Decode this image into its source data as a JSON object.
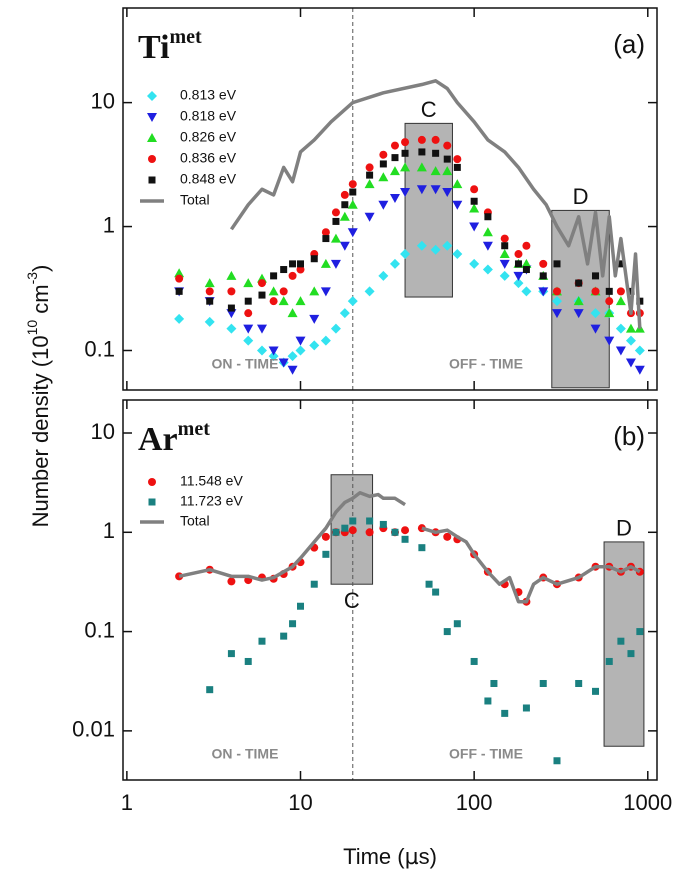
{
  "chart_data": [
    {
      "type": "scatter",
      "title": [
        "Ti",
        "met"
      ],
      "panel_label": "(a)",
      "on_label": "ON - TIME",
      "off_label": "OFF - TIME",
      "log_x": true,
      "log_y": true,
      "xlim": [
        0.95,
        1130
      ],
      "ylim": [
        0.048,
        58
      ],
      "xticks": [
        1,
        10,
        100,
        1000
      ],
      "yticks": [
        0.1,
        1,
        10
      ],
      "vline": 20,
      "legend": "upper left",
      "regions": [
        {
          "label": "C",
          "x": [
            40,
            75
          ],
          "y": [
            0.27,
            6.8
          ]
        },
        {
          "label": "D",
          "x": [
            280,
            600
          ],
          "y": [
            0.05,
            1.35
          ]
        }
      ],
      "series": [
        {
          "name": "0.813 eV",
          "color": "#33e3f0",
          "marker": "diamond",
          "x": [
            2,
            3,
            4,
            5,
            6,
            7,
            8,
            9,
            10,
            12,
            14,
            16,
            18,
            20,
            25,
            30,
            35,
            40,
            50,
            60,
            70,
            80,
            100,
            120,
            150,
            180,
            200,
            250,
            300,
            400,
            500,
            600,
            700,
            800,
            900
          ],
          "values": [
            0.18,
            0.17,
            0.15,
            0.12,
            0.1,
            0.09,
            0.08,
            0.09,
            0.1,
            0.11,
            0.12,
            0.15,
            0.2,
            0.25,
            0.3,
            0.4,
            0.5,
            0.6,
            0.7,
            0.65,
            0.7,
            0.6,
            0.5,
            0.45,
            0.4,
            0.35,
            0.3,
            0.3,
            0.25,
            0.25,
            0.2,
            0.2,
            0.15,
            0.12,
            0.1
          ]
        },
        {
          "name": "0.818 eV",
          "color": "#1f1fe0",
          "marker": "triangle-down",
          "x": [
            2,
            3,
            4,
            5,
            6,
            7,
            8,
            9,
            10,
            12,
            14,
            16,
            18,
            20,
            25,
            30,
            35,
            40,
            50,
            60,
            70,
            80,
            100,
            120,
            150,
            180,
            200,
            250,
            300,
            400,
            500,
            600,
            700,
            800,
            900
          ],
          "values": [
            0.3,
            0.25,
            0.2,
            0.15,
            0.15,
            0.1,
            0.08,
            0.07,
            0.12,
            0.18,
            0.3,
            0.5,
            0.7,
            0.9,
            1.2,
            1.5,
            1.7,
            1.9,
            2,
            2,
            1.9,
            1.5,
            1,
            0.7,
            0.5,
            0.4,
            0.45,
            0.3,
            0.2,
            0.2,
            0.15,
            0.12,
            0.1,
            0.08,
            0.07
          ]
        },
        {
          "name": "0.826 eV",
          "color": "#22dd22",
          "marker": "triangle-up",
          "x": [
            2,
            3,
            4,
            5,
            6,
            7,
            8,
            9,
            10,
            12,
            14,
            16,
            18,
            20,
            25,
            30,
            35,
            40,
            50,
            60,
            70,
            80,
            100,
            120,
            150,
            180,
            200,
            250,
            300,
            400,
            500,
            600,
            700,
            800,
            900
          ],
          "values": [
            0.42,
            0.35,
            0.4,
            0.35,
            0.38,
            0.3,
            0.25,
            0.2,
            0.25,
            0.3,
            0.5,
            0.8,
            1.2,
            1.5,
            2.2,
            2.5,
            2.8,
            3,
            3,
            2.8,
            2.8,
            2.2,
            1.4,
            0.9,
            0.6,
            0.5,
            0.5,
            0.4,
            0.3,
            0.25,
            0.3,
            0.2,
            0.25,
            0.15,
            0.15
          ]
        },
        {
          "name": "0.836 eV",
          "color": "#ee1111",
          "marker": "circle",
          "x": [
            2,
            3,
            4,
            5,
            6,
            7,
            8,
            9,
            10,
            12,
            14,
            16,
            18,
            20,
            25,
            30,
            35,
            40,
            50,
            60,
            70,
            80,
            100,
            120,
            150,
            180,
            200,
            250,
            300,
            400,
            500,
            600,
            700,
            800,
            900
          ],
          "values": [
            0.38,
            0.3,
            0.3,
            0.2,
            0.35,
            0.25,
            0.3,
            0.4,
            0.45,
            0.6,
            0.9,
            1.3,
            1.8,
            2.2,
            3,
            3.8,
            4.5,
            4.8,
            5,
            5,
            4.5,
            3.5,
            2,
            1.3,
            0.8,
            0.6,
            0.7,
            0.5,
            0.3,
            0.35,
            0.3,
            0.25,
            0.3,
            0.2,
            0.2
          ]
        },
        {
          "name": "0.848 eV",
          "color": "#111111",
          "marker": "square",
          "x": [
            2,
            3,
            4,
            5,
            6,
            7,
            8,
            9,
            10,
            12,
            14,
            16,
            18,
            20,
            25,
            30,
            35,
            40,
            50,
            60,
            70,
            80,
            100,
            120,
            150,
            180,
            200,
            250,
            300,
            400,
            500,
            600,
            700,
            800,
            900
          ],
          "values": [
            0.3,
            0.25,
            0.22,
            0.25,
            0.28,
            0.4,
            0.45,
            0.5,
            0.5,
            0.55,
            0.8,
            1.1,
            1.5,
            1.9,
            2.6,
            3.2,
            3.6,
            3.9,
            4,
            3.9,
            3.5,
            3,
            1.6,
            1.2,
            0.7,
            0.5,
            0.45,
            0.4,
            0.5,
            0.35,
            0.4,
            0.3,
            0.5,
            0.3,
            0.25
          ]
        },
        {
          "name": "Total",
          "color": "#808080",
          "marker": "line",
          "x": [
            4,
            5,
            6,
            7,
            8,
            9,
            10,
            12,
            15,
            20,
            30,
            50,
            60,
            70,
            80,
            100,
            120,
            150,
            180,
            220,
            260,
            300,
            350,
            400,
            450,
            500,
            550,
            600,
            650,
            700,
            800,
            850,
            900
          ],
          "values": [
            0.95,
            1.5,
            2,
            1.8,
            3,
            2.3,
            4,
            5,
            7,
            10,
            12,
            14,
            15,
            13,
            10,
            7,
            5,
            4,
            3,
            2,
            1.5,
            1,
            0.7,
            1.2,
            0.5,
            1.3,
            0.4,
            1.2,
            0.4,
            0.8,
            0.2,
            0.6,
            0.15
          ]
        }
      ]
    },
    {
      "type": "scatter",
      "title": [
        "Ar",
        "met"
      ],
      "panel_label": "(b)",
      "on_label": "ON - TIME",
      "off_label": "OFF - TIME",
      "log_x": true,
      "log_y": true,
      "xlim": [
        0.95,
        1130
      ],
      "ylim": [
        0.0032,
        21.5
      ],
      "xticks": [
        1,
        10,
        100,
        1000
      ],
      "yticks": [
        0.01,
        0.1,
        1,
        10
      ],
      "vline": 20,
      "legend": "upper left",
      "regions": [
        {
          "label": "C",
          "x": [
            15,
            26
          ],
          "y": [
            0.3,
            3.8
          ]
        },
        {
          "label": "D",
          "x": [
            560,
            950
          ],
          "y": [
            0.007,
            0.8
          ]
        }
      ],
      "series": [
        {
          "name": "11.548 eV",
          "color": "#ee1111",
          "marker": "circle",
          "x": [
            2,
            3,
            4,
            5,
            6,
            7,
            8,
            9,
            10,
            12,
            14,
            16,
            18,
            20,
            25,
            30,
            35,
            40,
            50,
            60,
            70,
            80,
            100,
            120,
            150,
            180,
            200,
            250,
            300,
            400,
            500,
            600,
            700,
            800,
            900
          ],
          "values": [
            0.36,
            0.42,
            0.32,
            0.33,
            0.35,
            0.34,
            0.38,
            0.45,
            0.5,
            0.7,
            0.9,
            1,
            1,
            1.05,
            1,
            1.1,
            1,
            1.05,
            1.1,
            1,
            0.9,
            0.85,
            0.6,
            0.4,
            0.3,
            0.25,
            0.2,
            0.35,
            0.3,
            0.35,
            0.45,
            0.45,
            0.4,
            0.45,
            0.4
          ]
        },
        {
          "name": "11.723 eV",
          "color": "#1a8080",
          "marker": "square",
          "x": [
            3,
            4,
            5,
            6,
            8,
            9,
            10,
            12,
            14,
            16,
            18,
            20,
            25,
            30,
            35,
            40,
            50,
            55,
            60,
            70,
            80,
            100,
            120,
            130,
            150,
            200,
            250,
            300,
            400,
            500,
            600,
            700,
            800,
            900
          ],
          "values": [
            0.026,
            0.06,
            0.05,
            0.08,
            0.09,
            0.12,
            0.18,
            0.3,
            0.6,
            1,
            1.1,
            1.3,
            1.3,
            1.2,
            1,
            0.85,
            0.7,
            0.3,
            0.25,
            0.1,
            0.12,
            0.05,
            0.02,
            0.03,
            0.015,
            0.017,
            0.03,
            0.005,
            0.03,
            0.025,
            0.05,
            0.08,
            0.06,
            0.1
          ]
        },
        {
          "name": "Total",
          "color": "#808080",
          "marker": "line",
          "x": [
            2,
            3,
            4,
            5,
            6,
            7,
            8,
            9,
            10,
            12,
            14,
            16,
            18,
            20,
            22,
            25,
            28,
            30,
            35,
            40,
            45,
            50,
            60,
            70,
            80,
            90,
            100,
            120,
            140,
            160,
            180,
            200,
            220,
            250,
            300,
            400,
            500,
            600,
            700,
            800,
            900
          ],
          "values": [
            0.36,
            0.42,
            0.36,
            0.36,
            0.33,
            0.35,
            0.4,
            0.45,
            0.55,
            0.8,
            1.1,
            1.6,
            2,
            2.2,
            2.5,
            2.3,
            2.4,
            2.2,
            2.2,
            1.9,
            null,
            1.1,
            1,
            1.05,
            0.9,
            0.8,
            0.6,
            0.4,
            0.3,
            0.35,
            0.2,
            0.2,
            0.3,
            0.35,
            0.3,
            0.35,
            0.45,
            0.45,
            0.4,
            0.45,
            0.4
          ]
        }
      ]
    }
  ],
  "xlabel": [
    "Time (",
    "µ",
    "s)"
  ],
  "ylabel": [
    "Number density (10",
    "10",
    " cm",
    "-3",
    ")"
  ]
}
